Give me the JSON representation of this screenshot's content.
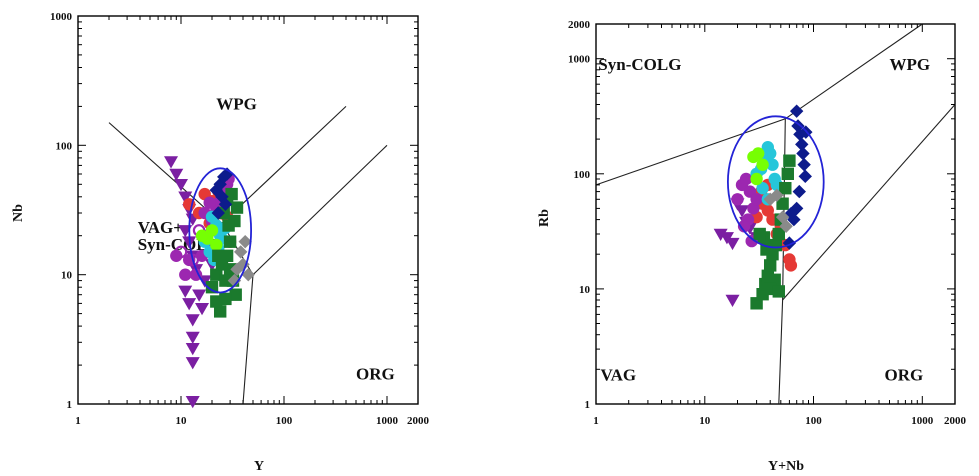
{
  "chart_data": [
    {
      "type": "scatter",
      "panel": "left",
      "xlabel": "Y",
      "ylabel": "Nb",
      "xscale": "log",
      "yscale": "log",
      "xlim": [
        1,
        2000
      ],
      "ylim": [
        1,
        1000
      ],
      "xticks": [
        {
          "v": 1,
          "label": "1"
        },
        {
          "v": 10,
          "label": "10"
        },
        {
          "v": 100,
          "label": "100"
        },
        {
          "v": 1000,
          "label": "1000"
        },
        {
          "v": 2000,
          "label": "2000"
        }
      ],
      "yticks": [
        {
          "v": 1,
          "label": "1"
        },
        {
          "v": 10,
          "label": "10"
        },
        {
          "v": 100,
          "label": "100"
        },
        {
          "v": 1000,
          "label": "1000"
        }
      ],
      "fields": [
        {
          "text": "WPG",
          "x": 22,
          "y": 190
        },
        {
          "text": "VAG+",
          "x": 3.8,
          "y": 21
        },
        {
          "text": "Syn-COLG",
          "x": 3.8,
          "y": 15.5
        },
        {
          "text": "ORG",
          "x": 500,
          "y": 1.55
        }
      ],
      "boundaries": [
        [
          [
            2,
            150
          ],
          [
            25,
            25
          ],
          [
            50,
            10
          ],
          [
            40,
            1
          ]
        ],
        [
          [
            25,
            25
          ],
          [
            400,
            200
          ]
        ],
        [
          [
            50,
            10
          ],
          [
            1000,
            100
          ]
        ]
      ],
      "circle": {
        "cx": 24,
        "cy": 22,
        "rx_decades": 0.3,
        "ry_decades": 0.48,
        "color": "#2323d6"
      },
      "series": [
        {
          "marker": "triangle-down",
          "color": "#7b1fa2",
          "points": [
            [
              8,
              75
            ],
            [
              9,
              60
            ],
            [
              10,
              50
            ],
            [
              11,
              40
            ],
            [
              12,
              32
            ],
            [
              13,
              27
            ],
            [
              11,
              22
            ],
            [
              12,
              18
            ],
            [
              13,
              14
            ],
            [
              14,
              11
            ],
            [
              11,
              7.5
            ],
            [
              12,
              6
            ],
            [
              13,
              4.5
            ],
            [
              13,
              3.3
            ],
            [
              13,
              2.7
            ],
            [
              13,
              2.1
            ],
            [
              13,
              1.05
            ],
            [
              16,
              5.5
            ],
            [
              15,
              7
            ],
            [
              17,
              9
            ],
            [
              20,
              12
            ],
            [
              19,
              16
            ]
          ]
        },
        {
          "marker": "circle",
          "color": "#e53935",
          "points": [
            [
              12,
              35
            ],
            [
              17,
              42
            ],
            [
              20,
              37
            ],
            [
              24,
              30
            ],
            [
              26,
              34
            ],
            [
              22,
              22
            ],
            [
              28,
              28
            ],
            [
              30,
              18
            ],
            [
              25,
              13
            ],
            [
              19,
              25
            ],
            [
              23,
              44
            ],
            [
              15,
              30
            ]
          ]
        },
        {
          "marker": "circle",
          "color": "#9c27b0",
          "points": [
            [
              12,
              13
            ],
            [
              14,
              10
            ],
            [
              16,
              14
            ],
            [
              18,
              20
            ],
            [
              20,
              26
            ],
            [
              22,
              31
            ],
            [
              24,
              37
            ],
            [
              26,
              45
            ],
            [
              28,
              50
            ],
            [
              29,
              55
            ],
            [
              17,
              30
            ],
            [
              19,
              36
            ],
            [
              9,
              14
            ],
            [
              11,
              10
            ]
          ]
        },
        {
          "marker": "circle-open",
          "color": "#9c27b0",
          "points": [
            [
              10,
              15
            ],
            [
              13,
              13
            ],
            [
              15,
              22
            ]
          ]
        },
        {
          "marker": "circle",
          "color": "#26c6da",
          "points": [
            [
              17,
              18
            ],
            [
              19,
              15
            ],
            [
              21,
              13
            ],
            [
              23,
              16
            ],
            [
              25,
              19
            ],
            [
              22,
              24
            ],
            [
              20,
              28
            ],
            [
              24,
              20
            ],
            [
              27,
              23
            ]
          ]
        },
        {
          "marker": "circle",
          "color": "#76ff03",
          "points": [
            [
              18,
              19
            ],
            [
              20,
              22
            ],
            [
              22,
              17
            ],
            [
              16,
              20
            ]
          ]
        },
        {
          "marker": "square",
          "color": "#1b7a2d",
          "points": [
            [
              20,
              8
            ],
            [
              22,
              10
            ],
            [
              25,
              12
            ],
            [
              28,
              14
            ],
            [
              30,
              11
            ],
            [
              32,
              9
            ],
            [
              34,
              7
            ],
            [
              27,
              6.5
            ],
            [
              24,
              5.2
            ],
            [
              30,
              18
            ],
            [
              33,
              26
            ],
            [
              35,
              33
            ],
            [
              29,
              24
            ],
            [
              26,
              30
            ],
            [
              31,
              42
            ],
            [
              28,
              38
            ],
            [
              23,
              14
            ],
            [
              27,
              9
            ],
            [
              22,
              6.2
            ]
          ]
        },
        {
          "marker": "diamond",
          "color": "#0d1b8c",
          "points": [
            [
              22,
              45
            ],
            [
              24,
              50
            ],
            [
              26,
              57
            ],
            [
              28,
              60
            ],
            [
              25,
              40
            ],
            [
              27,
              35
            ],
            [
              23,
              30
            ]
          ]
        },
        {
          "marker": "diamond",
          "color": "#8a8a8a",
          "points": [
            [
              35,
              11
            ],
            [
              38,
              15
            ],
            [
              40,
              12
            ],
            [
              42,
              18
            ],
            [
              45,
              10
            ],
            [
              33,
              9
            ]
          ]
        }
      ]
    },
    {
      "type": "scatter",
      "panel": "right",
      "xlabel": "Y+Nb",
      "ylabel": "Rb",
      "xscale": "log",
      "yscale": "log",
      "xlim": [
        1,
        2000
      ],
      "ylim": [
        1,
        2000
      ],
      "xticks": [
        {
          "v": 1,
          "label": "1"
        },
        {
          "v": 10,
          "label": "10"
        },
        {
          "v": 100,
          "label": "100"
        },
        {
          "v": 1000,
          "label": "1000"
        },
        {
          "v": 2000,
          "label": "2000"
        }
      ],
      "yticks": [
        {
          "v": 1,
          "label": "1"
        },
        {
          "v": 10,
          "label": "10"
        },
        {
          "v": 100,
          "label": "100"
        },
        {
          "v": 1000,
          "label": "1000"
        },
        {
          "v": 2000,
          "label": "2000"
        }
      ],
      "fields": [
        {
          "text": "Syn-COLG",
          "x": 1.05,
          "y": 800
        },
        {
          "text": "WPG",
          "x": 500,
          "y": 800
        },
        {
          "text": "VAG",
          "x": 1.1,
          "y": 1.6
        },
        {
          "text": "ORG",
          "x": 450,
          "y": 1.6
        }
      ],
      "boundaries": [
        [
          [
            1,
            80
          ],
          [
            55,
            300
          ],
          [
            1000,
            2000
          ]
        ],
        [
          [
            55,
            300
          ],
          [
            52,
            8
          ],
          [
            48,
            1
          ]
        ],
        [
          [
            52,
            8
          ],
          [
            2000,
            400
          ]
        ]
      ],
      "circle": {
        "cx": 45,
        "cy": 85,
        "rx_decades": 0.44,
        "ry_decades": 0.57,
        "color": "#2323d6"
      },
      "series": [
        {
          "marker": "triangle-down",
          "color": "#7b1fa2",
          "points": [
            [
              14,
              30
            ],
            [
              16,
              28
            ],
            [
              18,
              25
            ],
            [
              20,
              55
            ],
            [
              22,
              48
            ],
            [
              24,
              38
            ],
            [
              26,
              34
            ],
            [
              30,
              28
            ],
            [
              18,
              8
            ]
          ]
        },
        {
          "marker": "circle",
          "color": "#e53935",
          "points": [
            [
              30,
              42
            ],
            [
              34,
              55
            ],
            [
              38,
              48
            ],
            [
              42,
              40
            ],
            [
              46,
              30
            ],
            [
              50,
              35
            ],
            [
              55,
              24
            ],
            [
              60,
              18
            ],
            [
              62,
              16
            ],
            [
              33,
              70
            ],
            [
              38,
              80
            ]
          ]
        },
        {
          "marker": "circle",
          "color": "#9c27b0",
          "points": [
            [
              20,
              60
            ],
            [
              22,
              80
            ],
            [
              24,
              90
            ],
            [
              26,
              70
            ],
            [
              28,
              50
            ],
            [
              25,
              40
            ],
            [
              23,
              35
            ],
            [
              27,
              26
            ],
            [
              30,
              60
            ]
          ]
        },
        {
          "marker": "circle",
          "color": "#26c6da",
          "points": [
            [
              30,
              100
            ],
            [
              33,
              110
            ],
            [
              36,
              130
            ],
            [
              38,
              170
            ],
            [
              40,
              150
            ],
            [
              42,
              120
            ],
            [
              44,
              90
            ],
            [
              46,
              80
            ],
            [
              38,
              60
            ],
            [
              34,
              75
            ]
          ]
        },
        {
          "marker": "circle",
          "color": "#76ff03",
          "points": [
            [
              28,
              140
            ],
            [
              31,
              150
            ],
            [
              34,
              120
            ],
            [
              30,
              90
            ]
          ]
        },
        {
          "marker": "square",
          "color": "#1b7a2d",
          "points": [
            [
              30,
              7.5
            ],
            [
              34,
              9
            ],
            [
              36,
              11
            ],
            [
              38,
              13
            ],
            [
              40,
              16
            ],
            [
              42,
              20
            ],
            [
              45,
              24
            ],
            [
              48,
              30
            ],
            [
              50,
              40
            ],
            [
              52,
              55
            ],
            [
              55,
              75
            ],
            [
              58,
              100
            ],
            [
              60,
              130
            ],
            [
              35,
              28
            ],
            [
              37,
              22
            ],
            [
              44,
              12
            ],
            [
              40,
              10
            ],
            [
              48,
              9.5
            ],
            [
              32,
              30
            ]
          ]
        },
        {
          "marker": "diamond",
          "color": "#0d1b8c",
          "points": [
            [
              70,
              350
            ],
            [
              72,
              260
            ],
            [
              75,
              220
            ],
            [
              78,
              180
            ],
            [
              80,
              150
            ],
            [
              82,
              120
            ],
            [
              84,
              95
            ],
            [
              74,
              70
            ],
            [
              70,
              50
            ],
            [
              66,
              40
            ],
            [
              60,
              25
            ],
            [
              62,
              45
            ],
            [
              85,
              230
            ]
          ]
        },
        {
          "marker": "diamond",
          "color": "#8a8a8a",
          "points": [
            [
              40,
              60
            ],
            [
              46,
              65
            ],
            [
              52,
              42
            ],
            [
              56,
              35
            ]
          ]
        }
      ]
    }
  ]
}
